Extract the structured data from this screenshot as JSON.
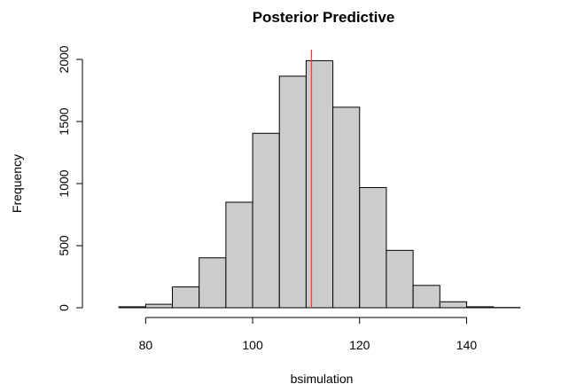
{
  "chart_data": {
    "type": "bar",
    "subtype": "histogram",
    "title": "Posterior Predictive",
    "xlabel": "bsimulation",
    "ylabel": "Frequency",
    "bins": [
      {
        "from": 75,
        "to": 80,
        "count": 8
      },
      {
        "from": 80,
        "to": 85,
        "count": 28
      },
      {
        "from": 85,
        "to": 90,
        "count": 168
      },
      {
        "from": 90,
        "to": 95,
        "count": 402
      },
      {
        "from": 95,
        "to": 100,
        "count": 850
      },
      {
        "from": 100,
        "to": 105,
        "count": 1405
      },
      {
        "from": 105,
        "to": 110,
        "count": 1865
      },
      {
        "from": 110,
        "to": 115,
        "count": 1990
      },
      {
        "from": 115,
        "to": 120,
        "count": 1615
      },
      {
        "from": 120,
        "to": 125,
        "count": 968
      },
      {
        "from": 125,
        "to": 130,
        "count": 462
      },
      {
        "from": 130,
        "to": 135,
        "count": 180
      },
      {
        "from": 135,
        "to": 140,
        "count": 48
      },
      {
        "from": 140,
        "to": 145,
        "count": 8
      },
      {
        "from": 145,
        "to": 150,
        "count": 2
      }
    ],
    "reference_line": {
      "x": 111,
      "color": "#ff3b3b"
    },
    "xlim": [
      70,
      155
    ],
    "ylim": [
      0,
      2000
    ],
    "x_ticks": [
      80,
      100,
      120,
      140
    ],
    "y_ticks": [
      0,
      500,
      1000,
      1500,
      2000
    ],
    "bar_fill": "#cccccc",
    "bar_stroke": "#000000",
    "grid": false,
    "legend": "none"
  }
}
